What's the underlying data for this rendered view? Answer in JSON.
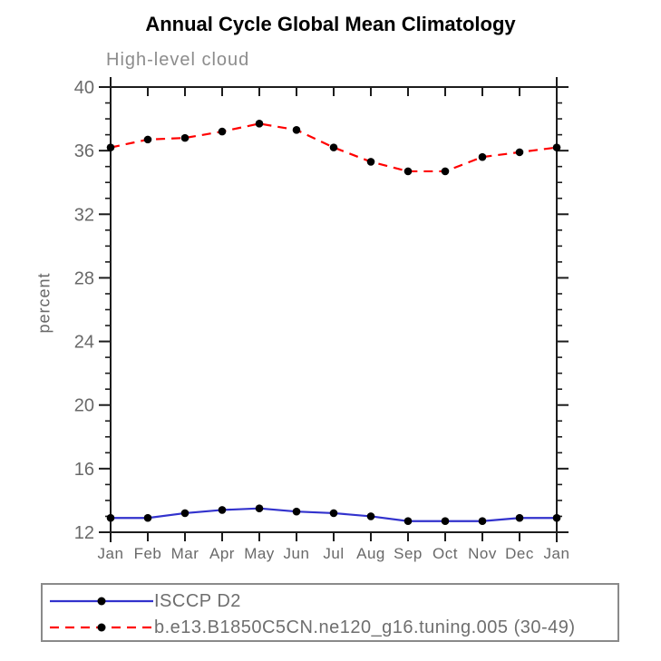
{
  "title": "Annual Cycle Global Mean Climatology",
  "chart_data": {
    "type": "line",
    "title": "Annual Cycle Global Mean Climatology",
    "subtitle": "High-level cloud",
    "xlabel": "",
    "ylabel": "percent",
    "categories": [
      "Jan",
      "Feb",
      "Mar",
      "Apr",
      "May",
      "Jun",
      "Jul",
      "Aug",
      "Sep",
      "Oct",
      "Nov",
      "Dec",
      "Jan"
    ],
    "ylim": [
      12,
      40
    ],
    "ytick_major": [
      12,
      16,
      20,
      24,
      28,
      32,
      36,
      40
    ],
    "ytick_minor_step": 1,
    "grid": false,
    "legend_position": "bottom-left-box",
    "series": [
      {
        "name": "ISCCP D2",
        "color": "#3232cd",
        "line_style": "solid",
        "marker": "black-dot",
        "values": [
          12.9,
          12.9,
          13.2,
          13.4,
          13.5,
          13.3,
          13.2,
          13.0,
          12.7,
          12.7,
          12.7,
          12.9,
          12.9
        ]
      },
      {
        "name": "b.e13.B1850C5CN.ne120_g16.tuning.005 (30-49)",
        "color": "#ff0000",
        "line_style": "dashed",
        "marker": "black-dot",
        "values": [
          36.2,
          36.7,
          36.8,
          37.2,
          37.7,
          37.3,
          36.2,
          35.3,
          34.7,
          34.7,
          35.6,
          35.9,
          36.2
        ]
      }
    ],
    "colors": {
      "axis": "#1c1c1c",
      "tick_label": "#696969",
      "title": "#000000",
      "subtitle": "#8c8c8c",
      "marker": "#000000",
      "legend_border": "#8a8a8a",
      "legend_text": "#6e6e6e"
    }
  }
}
